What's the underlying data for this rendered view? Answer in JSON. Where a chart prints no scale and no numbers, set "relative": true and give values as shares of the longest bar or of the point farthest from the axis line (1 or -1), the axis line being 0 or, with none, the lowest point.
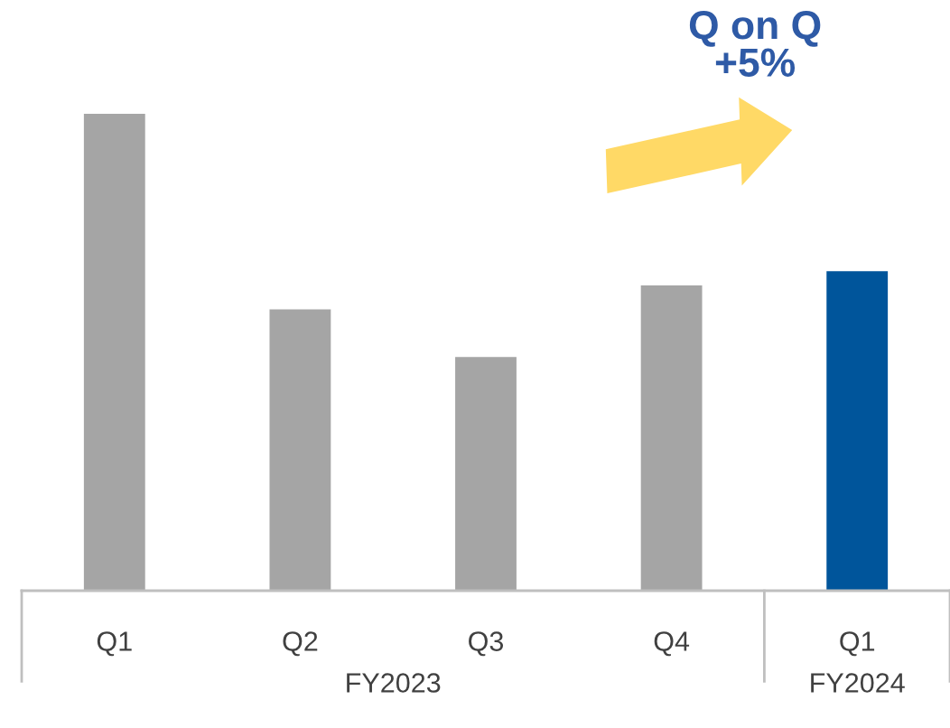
{
  "chart_data": {
    "type": "bar",
    "relative": true,
    "categories": [
      "Q1",
      "Q2",
      "Q3",
      "Q4",
      "Q1"
    ],
    "values": [
      1,
      0.59,
      0.49,
      0.64,
      0.67
    ],
    "colors": [
      "#a5a5a5",
      "#a5a5a5",
      "#a5a5a5",
      "#a5a5a5",
      "#00559b"
    ],
    "annotations": [
      "Q on Q\n+5%",
      "FY2023",
      "FY2024"
    ],
    "grid": false
  }
}
